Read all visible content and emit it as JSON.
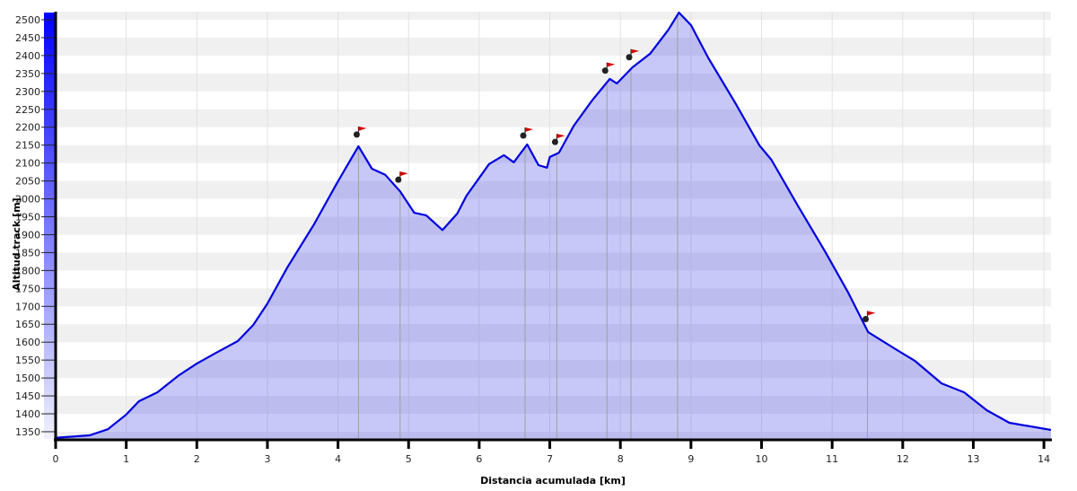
{
  "chart_data": {
    "type": "area",
    "title": "",
    "xlabel": "Distancia acumulada [km]",
    "ylabel": "Altitud track [m]",
    "xlim": [
      0,
      14.1
    ],
    "ylim": [
      1330,
      2525
    ],
    "xticks": [
      0,
      1,
      2,
      3,
      4,
      5,
      6,
      7,
      8,
      9,
      10,
      11,
      12,
      13,
      14
    ],
    "yticks": [
      1350,
      1400,
      1450,
      1500,
      1550,
      1600,
      1650,
      1700,
      1750,
      1800,
      1850,
      1900,
      1950,
      2000,
      2050,
      2100,
      2150,
      2200,
      2250,
      2300,
      2350,
      2400,
      2450,
      2500
    ],
    "grid": true,
    "colors": {
      "line": "#0000e0",
      "fill": "#c8c8f8",
      "fill_band": "#bcbcee",
      "band": "#f0f0f0",
      "axis_bar_top": "#0000ff",
      "axis_bar_bottom": "#f0f0ff",
      "flag": "#d00000"
    },
    "series": [
      {
        "x": [
          0,
          0.48,
          0.74,
          1.0,
          1.18,
          1.44,
          1.75,
          2.0,
          2.27,
          2.58,
          2.8,
          3.0,
          3.28,
          3.66,
          3.98,
          4.29,
          4.48,
          4.67,
          4.88,
          5.08,
          5.25,
          5.48,
          5.69,
          5.82,
          6.14,
          6.35,
          6.49,
          6.68,
          6.84,
          6.96,
          7.0,
          7.13,
          7.34,
          7.6,
          7.85,
          7.95,
          8.17,
          8.42,
          8.68,
          8.83,
          9.0,
          9.25,
          9.63,
          9.97,
          10.14,
          10.52,
          10.9,
          11.22,
          11.51,
          11.92,
          12.17,
          12.55,
          12.87,
          13.19,
          13.51,
          14.1
        ],
        "y": [
          1333,
          1340,
          1357,
          1398,
          1435,
          1460,
          1508,
          1540,
          1570,
          1603,
          1648,
          1708,
          1808,
          1929,
          2042,
          2147,
          2084,
          2067,
          2021,
          1961,
          1954,
          1913,
          1959,
          2009,
          2097,
          2122,
          2102,
          2152,
          2094,
          2087,
          2117,
          2129,
          2204,
          2275,
          2335,
          2322,
          2367,
          2405,
          2472,
          2520,
          2485,
          2392,
          2267,
          2149,
          2109,
          1979,
          1853,
          1741,
          1628,
          1578,
          1548,
          1485,
          1460,
          1410,
          1375,
          1355
        ]
      }
    ],
    "waypoints": [
      {
        "x": 4.29,
        "flag": true
      },
      {
        "x": 4.88,
        "flag": true
      },
      {
        "x": 6.65,
        "flag": true
      },
      {
        "x": 7.1,
        "flag": true
      },
      {
        "x": 7.81,
        "flag": true
      },
      {
        "x": 8.15,
        "flag": true
      },
      {
        "x": 8.81,
        "flag": false
      },
      {
        "x": 11.5,
        "flag": true
      }
    ]
  }
}
